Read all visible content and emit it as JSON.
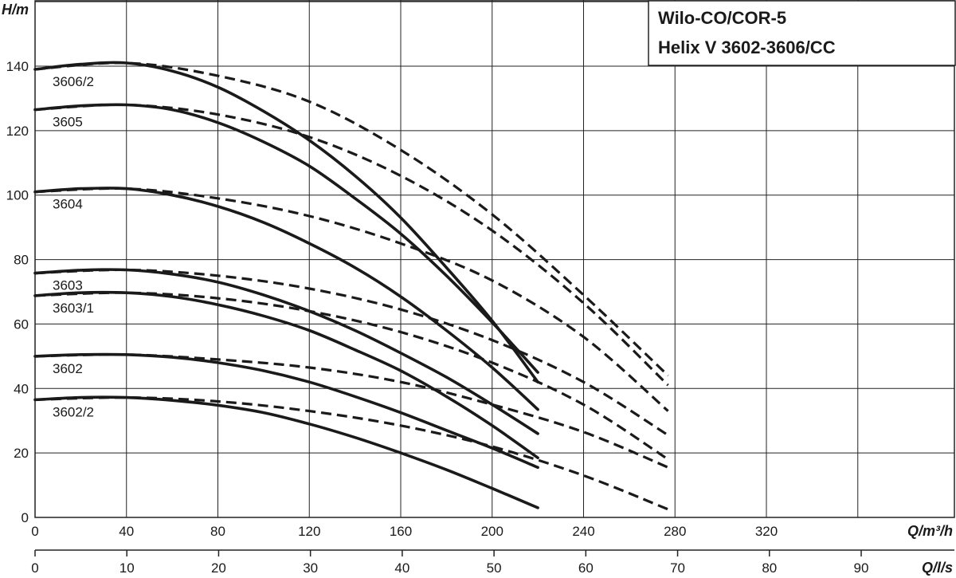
{
  "chart_data": {
    "type": "line",
    "title_lines": [
      "Wilo-CO/COR-5",
      "Helix V 3602-3606/CC"
    ],
    "ylabel": "H/m",
    "xlabel": "Q/m³/h",
    "x2label": "Q/l/s",
    "xlim": [
      0,
      320
    ],
    "ylim": [
      0,
      140
    ],
    "x2lim": [
      0,
      90
    ],
    "xticks": [
      0,
      40,
      80,
      120,
      160,
      200,
      240,
      280,
      320
    ],
    "yticks": [
      0,
      20,
      40,
      60,
      80,
      100,
      120,
      140
    ],
    "x2ticks": [
      0,
      10,
      20,
      30,
      40,
      50,
      60,
      70,
      80,
      90
    ],
    "grid": true,
    "series": [
      {
        "name": "3606/2",
        "solid": [
          [
            0,
            139
          ],
          [
            20,
            140.6
          ],
          [
            40,
            141
          ],
          [
            60,
            138.5
          ],
          [
            80,
            133.5
          ],
          [
            100,
            126
          ],
          [
            120,
            117
          ],
          [
            140,
            106
          ],
          [
            160,
            93
          ],
          [
            180,
            77.5
          ],
          [
            200,
            61
          ],
          [
            220,
            42
          ]
        ],
        "dashed": [
          [
            0,
            139
          ],
          [
            40,
            141
          ],
          [
            80,
            137
          ],
          [
            120,
            129
          ],
          [
            160,
            114
          ],
          [
            200,
            94
          ],
          [
            240,
            69
          ],
          [
            277,
            44
          ]
        ]
      },
      {
        "name": "3605",
        "solid": [
          [
            0,
            126.5
          ],
          [
            20,
            127.7
          ],
          [
            40,
            128
          ],
          [
            60,
            126.5
          ],
          [
            80,
            122.5
          ],
          [
            100,
            116.5
          ],
          [
            120,
            109
          ],
          [
            140,
            99
          ],
          [
            160,
            88
          ],
          [
            180,
            75
          ],
          [
            200,
            60.5
          ],
          [
            220,
            45
          ]
        ],
        "dashed": [
          [
            0,
            126.5
          ],
          [
            40,
            128
          ],
          [
            80,
            125
          ],
          [
            120,
            118
          ],
          [
            160,
            106
          ],
          [
            200,
            89
          ],
          [
            240,
            66.5
          ],
          [
            277,
            41
          ]
        ]
      },
      {
        "name": "3604",
        "solid": [
          [
            0,
            101
          ],
          [
            20,
            102
          ],
          [
            40,
            102
          ],
          [
            60,
            100
          ],
          [
            80,
            96.5
          ],
          [
            100,
            91.5
          ],
          [
            120,
            85
          ],
          [
            140,
            77.5
          ],
          [
            160,
            68.5
          ],
          [
            180,
            58
          ],
          [
            200,
            46.5
          ],
          [
            220,
            33.5
          ]
        ],
        "dashed": [
          [
            0,
            101
          ],
          [
            40,
            102
          ],
          [
            80,
            99
          ],
          [
            120,
            93.5
          ],
          [
            160,
            85
          ],
          [
            200,
            73.5
          ],
          [
            240,
            56
          ],
          [
            277,
            33
          ]
        ]
      },
      {
        "name": "3603",
        "solid": [
          [
            0,
            75.8
          ],
          [
            20,
            76.7
          ],
          [
            40,
            76.8
          ],
          [
            60,
            75.5
          ],
          [
            80,
            73
          ],
          [
            100,
            69
          ],
          [
            120,
            64
          ],
          [
            140,
            58
          ],
          [
            160,
            51
          ],
          [
            180,
            43.5
          ],
          [
            200,
            35
          ],
          [
            220,
            26
          ]
        ],
        "dashed": [
          [
            0,
            75.8
          ],
          [
            40,
            76.8
          ],
          [
            80,
            75
          ],
          [
            120,
            71
          ],
          [
            160,
            64.5
          ],
          [
            200,
            55
          ],
          [
            240,
            42
          ],
          [
            277,
            25.5
          ]
        ]
      },
      {
        "name": "3603/1",
        "solid": [
          [
            0,
            68.8
          ],
          [
            20,
            69.7
          ],
          [
            40,
            69.7
          ],
          [
            60,
            68.5
          ],
          [
            80,
            66
          ],
          [
            100,
            62.5
          ],
          [
            120,
            58
          ],
          [
            140,
            52
          ],
          [
            160,
            45.5
          ],
          [
            180,
            37.5
          ],
          [
            200,
            28.5
          ],
          [
            220,
            18.5
          ]
        ],
        "dashed": [
          [
            0,
            68.8
          ],
          [
            40,
            69.7
          ],
          [
            80,
            68
          ],
          [
            120,
            64
          ],
          [
            160,
            57.5
          ],
          [
            200,
            48
          ],
          [
            240,
            35
          ],
          [
            277,
            18
          ]
        ]
      },
      {
        "name": "3602",
        "solid": [
          [
            0,
            50
          ],
          [
            20,
            50.5
          ],
          [
            40,
            50.5
          ],
          [
            60,
            49.7
          ],
          [
            80,
            48
          ],
          [
            100,
            45.5
          ],
          [
            120,
            42
          ],
          [
            140,
            37.5
          ],
          [
            160,
            32.5
          ],
          [
            180,
            27
          ],
          [
            200,
            21.5
          ],
          [
            220,
            15.5
          ]
        ],
        "dashed": [
          [
            0,
            50
          ],
          [
            40,
            50.5
          ],
          [
            80,
            49
          ],
          [
            120,
            46.5
          ],
          [
            160,
            42
          ],
          [
            200,
            35
          ],
          [
            240,
            26.5
          ],
          [
            277,
            15.5
          ]
        ]
      },
      {
        "name": "3602/2",
        "solid": [
          [
            0,
            36.5
          ],
          [
            20,
            37.2
          ],
          [
            40,
            37.2
          ],
          [
            60,
            36.3
          ],
          [
            80,
            34.8
          ],
          [
            100,
            32.5
          ],
          [
            120,
            29
          ],
          [
            140,
            24.8
          ],
          [
            160,
            20
          ],
          [
            180,
            14.8
          ],
          [
            200,
            9
          ],
          [
            220,
            3
          ]
        ],
        "dashed": [
          [
            0,
            36.5
          ],
          [
            40,
            37.2
          ],
          [
            80,
            36
          ],
          [
            120,
            33
          ],
          [
            160,
            28.5
          ],
          [
            200,
            22
          ],
          [
            240,
            13
          ],
          [
            277,
            2.5
          ]
        ]
      }
    ]
  }
}
